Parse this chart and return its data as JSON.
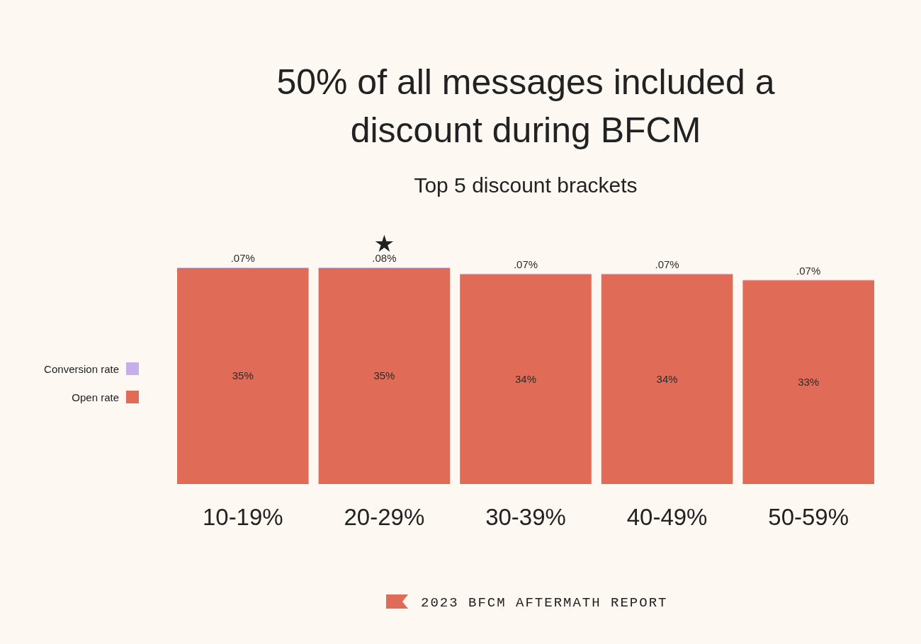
{
  "chart_data": {
    "type": "bar",
    "stacked": true,
    "title": "50% of all messages included a discount during BFCM",
    "subtitle": "Top 5 discount brackets",
    "categories": [
      "10-19%",
      "20-29%",
      "30-39%",
      "40-49%",
      "50-59%"
    ],
    "series": [
      {
        "name": "Open rate",
        "color": "#e06c57",
        "values": [
          35,
          35,
          34,
          34,
          33
        ],
        "value_labels": [
          "35%",
          "35%",
          "34%",
          "34%",
          "33%"
        ]
      },
      {
        "name": "Conversion rate",
        "color": "#c5aee9",
        "values": [
          0.07,
          0.08,
          0.07,
          0.07,
          0.07
        ],
        "value_labels": [
          ".07%",
          ".08%",
          ".07%",
          ".07%",
          ".07%"
        ]
      }
    ],
    "legend": "left",
    "annotations": [
      "2023 BFCM AFTERMATH REPORT"
    ]
  }
}
